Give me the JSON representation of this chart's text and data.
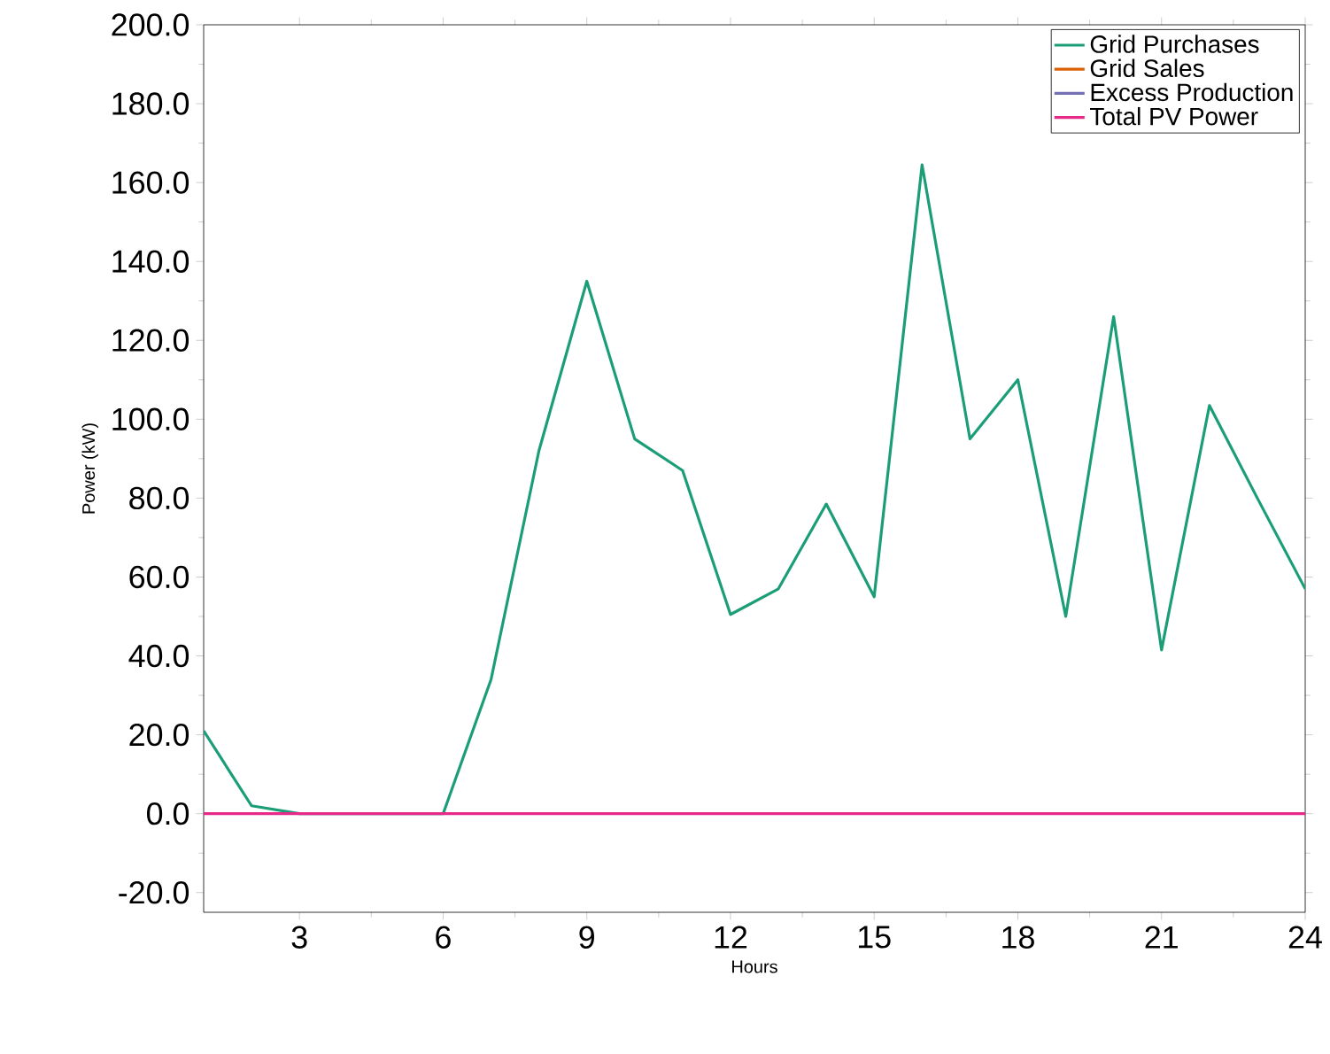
{
  "chart_data": {
    "type": "line",
    "xlabel": "Hours",
    "ylabel": "Power (kW)",
    "x": [
      1,
      2,
      3,
      4,
      5,
      6,
      7,
      8,
      9,
      10,
      11,
      12,
      13,
      14,
      15,
      16,
      17,
      18,
      19,
      20,
      21,
      22,
      23,
      24
    ],
    "series": [
      {
        "name": "Grid Purchases",
        "color": "#1b9e77",
        "values": [
          21,
          2,
          0,
          0,
          0,
          0,
          34,
          92,
          135,
          95,
          87,
          50.5,
          57,
          78.5,
          55,
          164.5,
          95,
          110,
          50,
          126,
          41.5,
          103.5,
          80,
          57
        ]
      },
      {
        "name": "Grid Sales",
        "color": "#d95f02",
        "values": [
          null,
          null,
          null,
          null,
          null,
          null,
          null,
          null,
          null,
          null,
          null,
          null,
          null,
          null,
          null,
          null,
          null,
          null,
          null,
          null,
          null,
          null,
          null,
          null
        ]
      },
      {
        "name": "Excess Production",
        "color": "#7570b3",
        "values": [
          null,
          null,
          null,
          null,
          null,
          null,
          null,
          null,
          null,
          null,
          null,
          null,
          null,
          null,
          null,
          null,
          null,
          null,
          null,
          null,
          null,
          null,
          null,
          null
        ]
      },
      {
        "name": "Total PV Power",
        "color": "#e7298a",
        "values": [
          0,
          0,
          0,
          0,
          0,
          0,
          0,
          0,
          0,
          0,
          0,
          0,
          0,
          0,
          0,
          0,
          0,
          0,
          0,
          0,
          0,
          0,
          0,
          0
        ]
      }
    ],
    "xlim": [
      1,
      24
    ],
    "ylim": [
      -25,
      200
    ],
    "xticks": [
      3,
      6,
      9,
      12,
      15,
      18,
      21,
      24
    ],
    "yticks": [
      {
        "value": -20,
        "label": "-20.0"
      },
      {
        "value": 0,
        "label": "0.0"
      },
      {
        "value": 20,
        "label": "20.0"
      },
      {
        "value": 40,
        "label": "40.0"
      },
      {
        "value": 60,
        "label": "60.0"
      },
      {
        "value": 80,
        "label": "80.0"
      },
      {
        "value": 100,
        "label": "100.0"
      },
      {
        "value": 120,
        "label": "120.0"
      },
      {
        "value": 140,
        "label": "140.0"
      },
      {
        "value": 160,
        "label": "160.0"
      },
      {
        "value": 180,
        "label": "180.0"
      },
      {
        "value": 200,
        "label": "200.0"
      }
    ],
    "legend": "top right"
  }
}
